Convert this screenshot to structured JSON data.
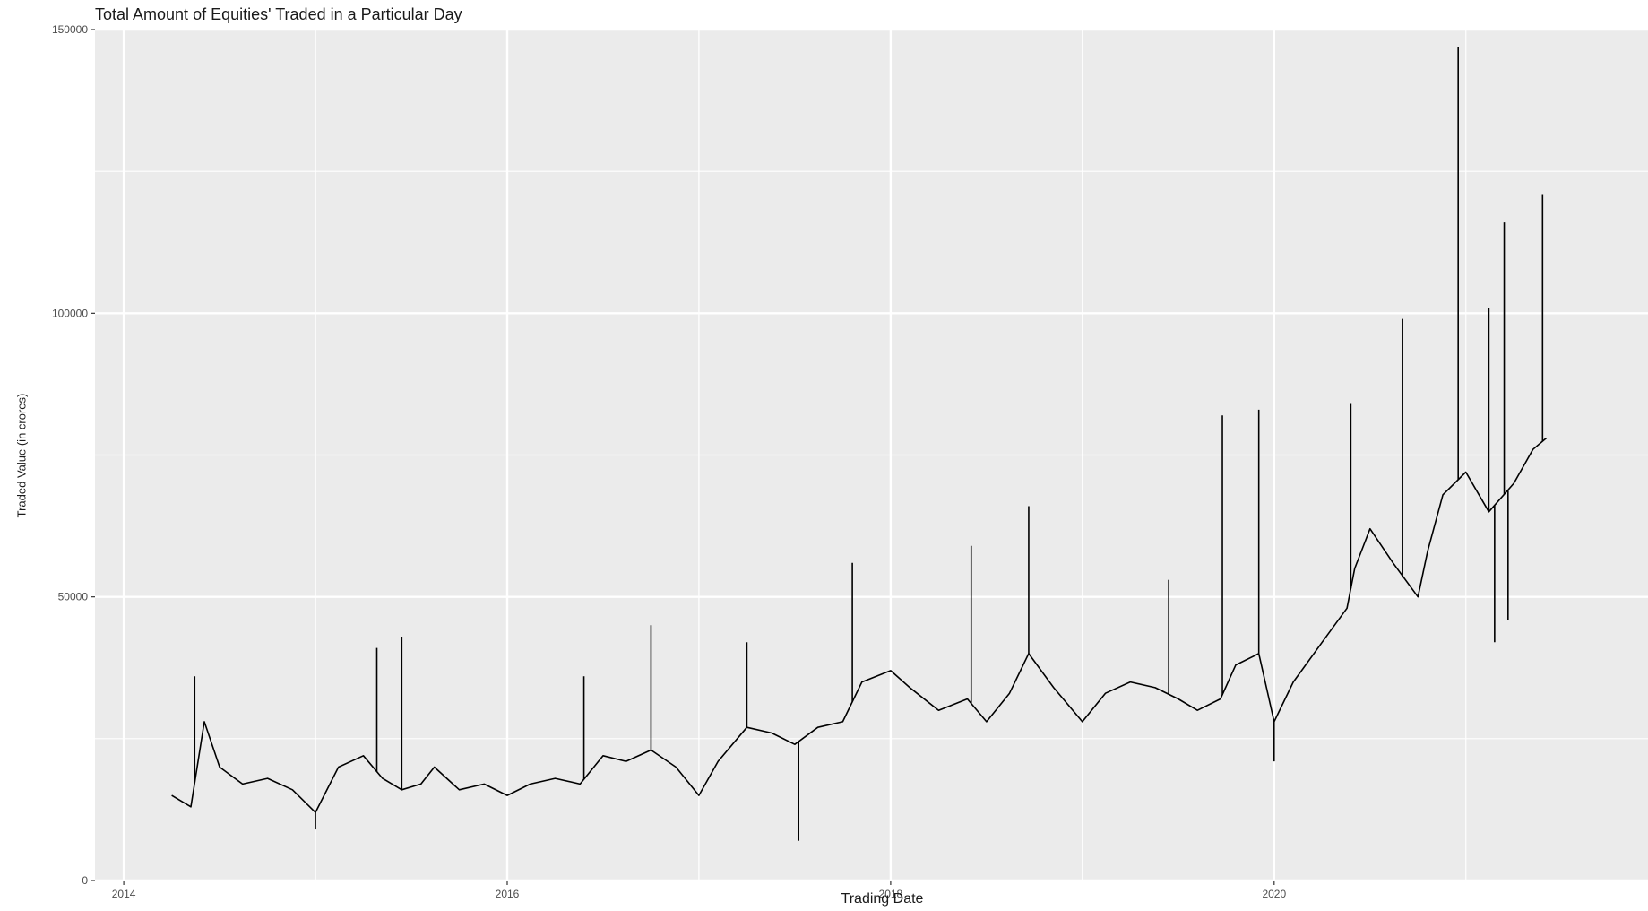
{
  "chart_data": {
    "type": "line",
    "title": "Total Amount of Equities' Traded in a Particular Day",
    "xlabel": "Trading Date",
    "ylabel": "Traded Value (in crores)",
    "xlim": [
      2013.85,
      2021.95
    ],
    "ylim": [
      0,
      150000
    ],
    "grid": true,
    "legend": "none",
    "colors": {
      "panel": "#ebebeb",
      "grid": "#ffffff",
      "line": "#000000"
    },
    "x_ticks": [
      {
        "value": 2014,
        "label": "2014"
      },
      {
        "value": 2016,
        "label": "2016"
      },
      {
        "value": 2018,
        "label": "2018"
      },
      {
        "value": 2020,
        "label": "2020"
      }
    ],
    "y_ticks": [
      {
        "value": 0,
        "label": "0"
      },
      {
        "value": 50000,
        "label": "50000"
      },
      {
        "value": 100000,
        "label": "100000"
      },
      {
        "value": 150000,
        "label": "150000"
      }
    ],
    "series": [
      {
        "name": "",
        "x": [
          2014.25,
          2014.35,
          2014.42,
          2014.5,
          2014.62,
          2014.75,
          2014.88,
          2015.0,
          2015.12,
          2015.25,
          2015.35,
          2015.45,
          2015.55,
          2015.62,
          2015.75,
          2015.88,
          2016.0,
          2016.12,
          2016.25,
          2016.38,
          2016.5,
          2016.62,
          2016.75,
          2016.88,
          2017.0,
          2017.1,
          2017.25,
          2017.38,
          2017.5,
          2017.62,
          2017.75,
          2017.85,
          2018.0,
          2018.1,
          2018.25,
          2018.4,
          2018.5,
          2018.62,
          2018.72,
          2018.85,
          2019.0,
          2019.12,
          2019.25,
          2019.38,
          2019.5,
          2019.6,
          2019.72,
          2019.8,
          2019.92,
          2020.0,
          2020.1,
          2020.25,
          2020.38,
          2020.42,
          2020.5,
          2020.62,
          2020.75,
          2020.8,
          2020.88,
          2021.0,
          2021.12,
          2021.25,
          2021.35,
          2021.42
        ],
        "values": [
          15000,
          13000,
          28000,
          20000,
          17000,
          18000,
          16000,
          12000,
          20000,
          22000,
          18000,
          16000,
          17000,
          20000,
          16000,
          17000,
          15000,
          17000,
          18000,
          17000,
          22000,
          21000,
          23000,
          20000,
          15000,
          21000,
          27000,
          26000,
          24000,
          27000,
          28000,
          35000,
          37000,
          34000,
          30000,
          32000,
          28000,
          33000,
          40000,
          34000,
          28000,
          33000,
          35000,
          34000,
          32000,
          30000,
          32000,
          38000,
          40000,
          28000,
          35000,
          42000,
          48000,
          55000,
          62000,
          56000,
          50000,
          58000,
          68000,
          72000,
          65000,
          70000,
          76000,
          78000
        ]
      }
    ],
    "spikes": [
      {
        "x": 2014.37,
        "y": 36000
      },
      {
        "x": 2015.0,
        "y": 9000
      },
      {
        "x": 2015.32,
        "y": 41000
      },
      {
        "x": 2015.45,
        "y": 43000
      },
      {
        "x": 2016.4,
        "y": 36000
      },
      {
        "x": 2016.75,
        "y": 45000
      },
      {
        "x": 2017.25,
        "y": 42000
      },
      {
        "x": 2017.52,
        "y": 7000
      },
      {
        "x": 2017.8,
        "y": 56000
      },
      {
        "x": 2018.42,
        "y": 59000
      },
      {
        "x": 2018.72,
        "y": 66000
      },
      {
        "x": 2019.45,
        "y": 53000
      },
      {
        "x": 2019.73,
        "y": 82000
      },
      {
        "x": 2019.92,
        "y": 83000
      },
      {
        "x": 2020.0,
        "y": 21000
      },
      {
        "x": 2020.4,
        "y": 84000
      },
      {
        "x": 2020.67,
        "y": 99000
      },
      {
        "x": 2020.96,
        "y": 147000
      },
      {
        "x": 2021.15,
        "y": 42000
      },
      {
        "x": 2021.2,
        "y": 116000
      },
      {
        "x": 2021.12,
        "y": 101000
      },
      {
        "x": 2021.22,
        "y": 46000
      },
      {
        "x": 2021.4,
        "y": 121000
      }
    ]
  }
}
